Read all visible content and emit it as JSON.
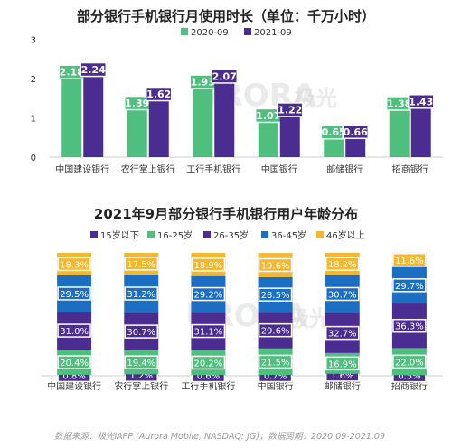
{
  "colors": {
    "green": "#4ebf7c",
    "purple": "#4b2d91",
    "blue": "#1b6ec2",
    "yellow": "#f5b72e",
    "axis": "#cccccc",
    "text": "#333333"
  },
  "watermark": {
    "text": "URORA",
    "brand": "极光"
  },
  "source": "数据来源：极光iAPP (Aurora Mobile, NASDAQ: JG)；数据周期：2020.09-2021.09",
  "chart_data": [
    {
      "type": "bar",
      "title": "部分银行手机银行月使用时长（单位：千万小时）",
      "categories": [
        "中国建设银行",
        "农行掌上银行",
        "工行手机银行",
        "中国银行",
        "邮储银行",
        "招商银行"
      ],
      "series": [
        {
          "name": "2020-09",
          "values": [
            2.18,
            1.39,
            1.93,
            1.07,
            0.65,
            1.38
          ],
          "color": "#4ebf7c"
        },
        {
          "name": "2021-09",
          "values": [
            2.24,
            1.62,
            2.07,
            1.22,
            0.66,
            1.43
          ],
          "color": "#4b2d91"
        }
      ],
      "ylim": [
        0,
        3
      ],
      "yticks": [
        "0",
        "1",
        "2",
        "3"
      ],
      "legend": "top-center"
    },
    {
      "type": "bar",
      "stacked": true,
      "title": "2021年9月部分银行手机银行用户年龄分布",
      "categories": [
        "中国建设银行",
        "农行掌上银行",
        "工行手机银行",
        "中国银行",
        "邮储银行",
        "招商银行"
      ],
      "series": [
        {
          "name": "15岁以下",
          "values": [
            "0.8%",
            "1.2%",
            "0.6%",
            "0.7%",
            "1.6%",
            "0.5%"
          ],
          "color": "#4b2d91"
        },
        {
          "name": "16-25岁",
          "values": [
            "20.4%",
            "19.4%",
            "20.2%",
            "21.5%",
            "16.9%",
            "22.0%"
          ],
          "color": "#4ebf7c"
        },
        {
          "name": "26-35岁",
          "values": [
            "31.0%",
            "30.7%",
            "31.1%",
            "29.6%",
            "32.7%",
            "36.3%"
          ],
          "color": "#4b2d91"
        },
        {
          "name": "36-45岁",
          "values": [
            "29.5%",
            "31.2%",
            "29.2%",
            "28.5%",
            "30.7%",
            "29.7%"
          ],
          "color": "#1b6ec2"
        },
        {
          "name": "46岁以上",
          "values": [
            "18.3%",
            "17.5%",
            "18.9%",
            "19.6%",
            "18.2%",
            "11.6%"
          ],
          "color": "#f5b72e"
        }
      ],
      "legend": "top-center"
    }
  ]
}
